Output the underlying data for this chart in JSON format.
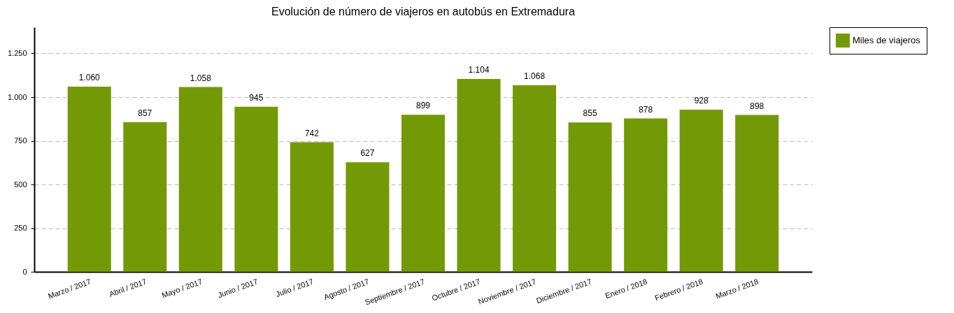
{
  "chart_data": {
    "type": "bar",
    "title": "Evolución de número de viajeros en autobús en Extremadura",
    "categories": [
      "Marzo / 2017",
      "Abril / 2017",
      "Mayo / 2017",
      "Junio / 2017",
      "Julio / 2017",
      "Agosto / 2017",
      "Septiembre / 2017",
      "Octubre / 2017",
      "Noviembre / 2017",
      "Diciembre / 2017",
      "Enero / 2018",
      "Febrero / 2018",
      "Marzo / 2018"
    ],
    "series": [
      {
        "name": "Miles de viajeros",
        "color": "#739a06",
        "values": [
          1060,
          857,
          1058,
          945,
          742,
          627,
          899,
          1104,
          1068,
          855,
          878,
          928,
          898
        ],
        "value_labels": [
          "1.060",
          "857",
          "1.058",
          "945",
          "742",
          "627",
          "899",
          "1.104",
          "1.068",
          "855",
          "878",
          "928",
          "898"
        ]
      }
    ],
    "ylim": [
      0,
      1400
    ],
    "yticks": [
      0,
      250,
      500,
      750,
      {
        "value": 1000,
        "label": "1.000"
      },
      {
        "value": 1250,
        "label": "1.250"
      }
    ],
    "grid": "y",
    "legend": "right"
  }
}
